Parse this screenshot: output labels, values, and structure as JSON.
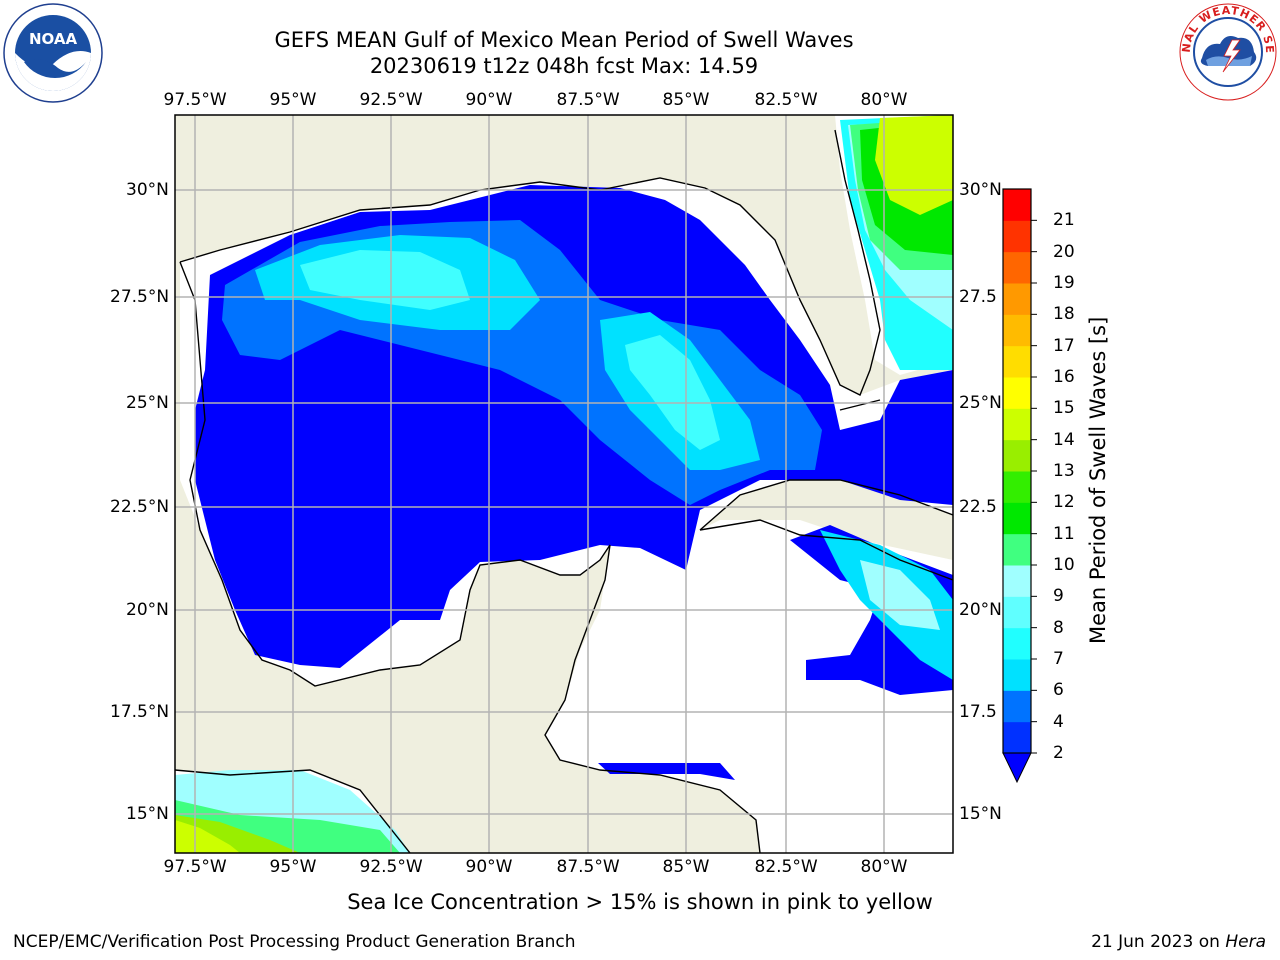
{
  "header": {
    "title_line1": "GEFS MEAN Gulf of Mexico Mean Period of Swell Waves",
    "title_line2": "20230619 t12z 048h fcst   Max: 14.59"
  },
  "logos": {
    "left": {
      "name": "NOAA",
      "ring_text": "NATIONAL OCEANIC AND ATMOSPHERIC ADMINISTRATION · U.S. DEPARTMENT OF COMMERCE"
    },
    "right": {
      "name": "NATIONAL WEATHER SERVICE"
    }
  },
  "map": {
    "lon_labels": [
      "97.5°W",
      "95°W",
      "92.5°W",
      "90°W",
      "87.5°W",
      "85°W",
      "82.5°W",
      "80°W"
    ],
    "lat_labels_left": [
      "30°N",
      "27.5°N",
      "25°N",
      "22.5°N",
      "20°N",
      "17.5°N",
      "15°N"
    ],
    "lat_labels_right": [
      "30°N",
      "27.5",
      "25°N",
      "22.5",
      "20°N",
      "17.5",
      "15°N"
    ],
    "colors": {
      "land": "#efefdf",
      "ocean_no_data": "#ffffff",
      "grid": "#b3b3b3",
      "coast": "#000000"
    }
  },
  "colorbar": {
    "label": "Mean Period of Swell Waves [s]",
    "ticks": [
      "2",
      "4",
      "6",
      "7",
      "8",
      "9",
      "10",
      "11",
      "12",
      "13",
      "14",
      "15",
      "16",
      "17",
      "18",
      "19",
      "20",
      "21"
    ],
    "colors": [
      "#0031ff",
      "#0073ff",
      "#00e1ff",
      "#20ffff",
      "#60ffff",
      "#a0ffff",
      "#40ff80",
      "#00e800",
      "#33ee00",
      "#99ee00",
      "#ccff00",
      "#ffff00",
      "#ffdd00",
      "#ffbb00",
      "#ff9900",
      "#ff6600",
      "#ff3300",
      "#ff0000"
    ],
    "extend_color": "#0000ff"
  },
  "footer": {
    "note": "Sea Ice Concentration > 15% is shown in pink to yellow",
    "left": "NCEP/EMC/Verification Post Processing Product Generation Branch",
    "right_date": "21 Jun 2023 on ",
    "right_host": "Hera"
  }
}
